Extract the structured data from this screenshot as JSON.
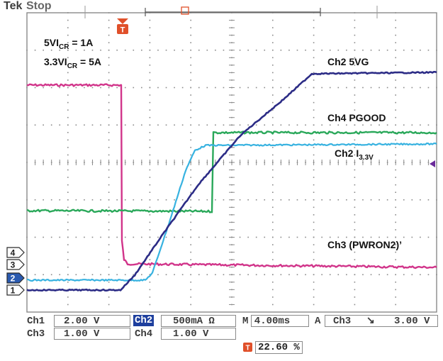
{
  "header": {
    "brand": "Tek",
    "status": "Stop"
  },
  "annotations": {
    "vicr_5_base": "5VI",
    "vicr_5_sub": "CR",
    "vicr_5_val": " = 1A",
    "vicr_33_base": "3.3VI",
    "vicr_33_sub": "CR",
    "vicr_33_val": " = 5A",
    "ch2_5vg": "Ch2 5VG",
    "ch4_pgood": "Ch4 PGOOD",
    "ch2_i_base": "Ch2 I",
    "ch2_i_sub": "3.3V",
    "ch3_pwron2": "Ch3 (PWRON2)’"
  },
  "markers": {
    "ch4": "4",
    "ch3": "3",
    "ch2": "2",
    "ch1": "1"
  },
  "readouts": {
    "ch1_label": "Ch1",
    "ch1_value": "2.00 V",
    "ch2_label": "Ch2",
    "ch2_value": "500mA Ω",
    "ch3_label": "Ch3",
    "ch3_value": "1.00 V",
    "ch4_label": "Ch4",
    "ch4_value": "1.00 V",
    "timebase": "M 4.00ms",
    "trigger_mode": "A",
    "trigger_src": "Ch3",
    "trigger_slope": "↘",
    "trigger_level": "3.00 V",
    "trigger_position": "22.60 %"
  },
  "colors": {
    "ch1": "#2c2c86",
    "ch2": "#37b2e0",
    "ch3": "#d1348a",
    "ch4": "#2aa85a",
    "grid": "#8a8a8a",
    "trigger": "#e0502a"
  }
}
